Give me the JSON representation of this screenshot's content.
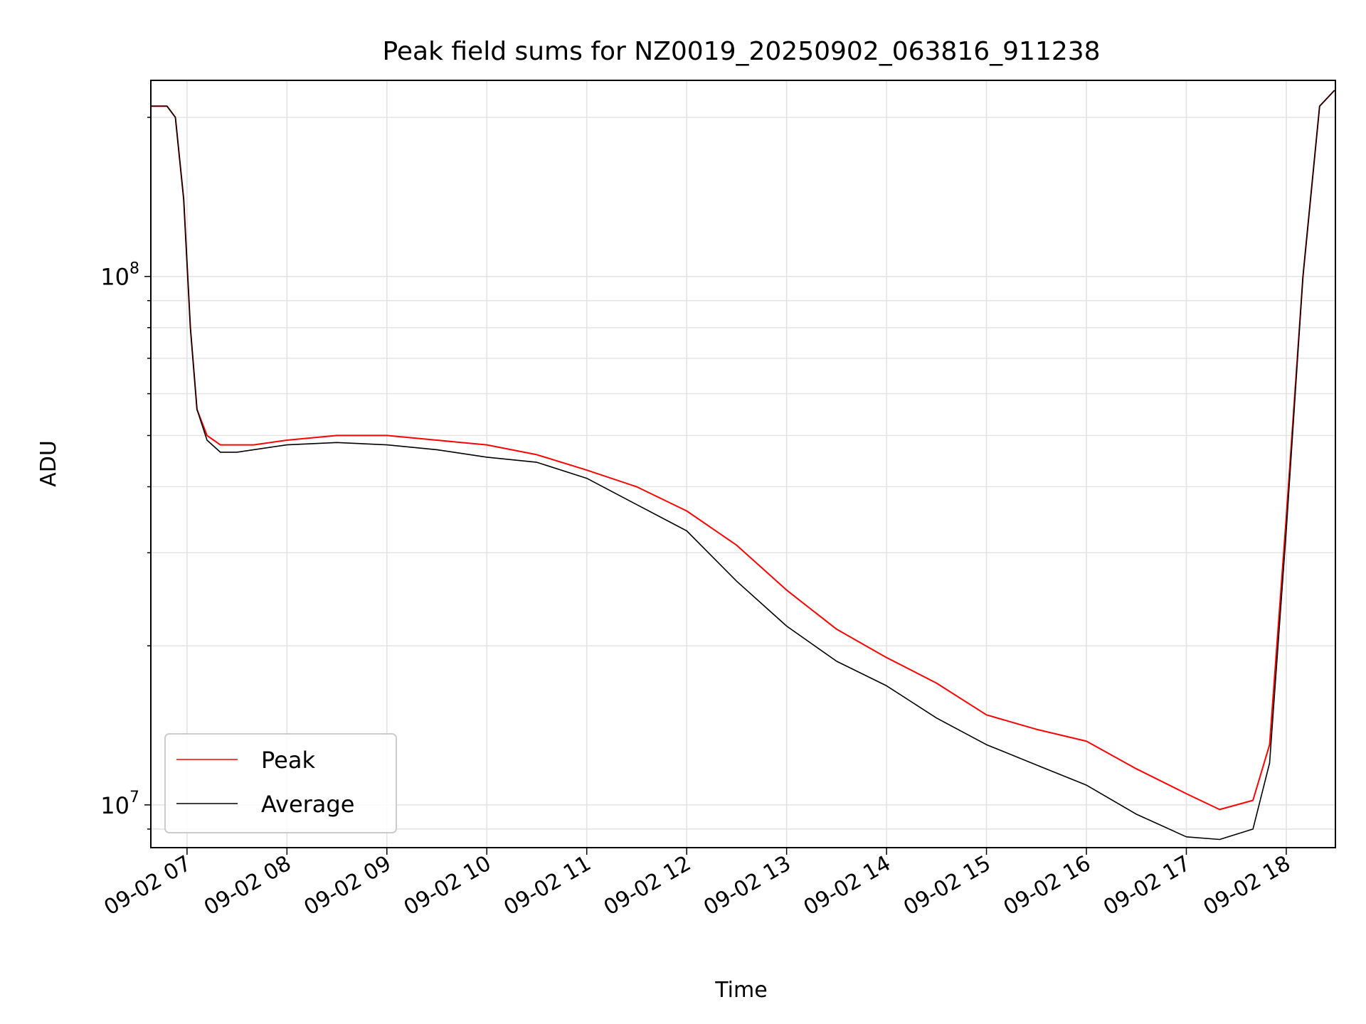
{
  "chart_data": {
    "type": "line",
    "title": "Peak field sums for NZ0019_20250902_063816_911238",
    "xlabel": "Time",
    "ylabel": "ADU",
    "yscale": "log",
    "ylim": [
      8300000,
      235000000
    ],
    "xlim": [
      "2025-09-02 06:38:16",
      "2025-09-02 18:29:30"
    ],
    "x_ticks": [
      {
        "time": "2025-09-02 07:00",
        "label": "09-02 07"
      },
      {
        "time": "2025-09-02 08:00",
        "label": "09-02 08"
      },
      {
        "time": "2025-09-02 09:00",
        "label": "09-02 09"
      },
      {
        "time": "2025-09-02 10:00",
        "label": "09-02 10"
      },
      {
        "time": "2025-09-02 11:00",
        "label": "09-02 11"
      },
      {
        "time": "2025-09-02 12:00",
        "label": "09-02 12"
      },
      {
        "time": "2025-09-02 13:00",
        "label": "09-02 13"
      },
      {
        "time": "2025-09-02 14:00",
        "label": "09-02 14"
      },
      {
        "time": "2025-09-02 15:00",
        "label": "09-02 15"
      },
      {
        "time": "2025-09-02 16:00",
        "label": "09-02 16"
      },
      {
        "time": "2025-09-02 17:00",
        "label": "09-02 17"
      },
      {
        "time": "2025-09-02 18:00",
        "label": "09-02 18"
      }
    ],
    "y_ticks": [
      {
        "value": 10000000,
        "base": "10",
        "exp": "7"
      },
      {
        "value": 100000000,
        "base": "10",
        "exp": "8"
      }
    ],
    "grid": true,
    "legend_position": "lower-left",
    "series": [
      {
        "name": "Peak",
        "color": "#ff0000",
        "x": [
          "2025-09-02 06:38",
          "2025-09-02 06:48",
          "2025-09-02 06:53",
          "2025-09-02 06:58",
          "2025-09-02 07:02",
          "2025-09-02 07:06",
          "2025-09-02 07:12",
          "2025-09-02 07:20",
          "2025-09-02 07:30",
          "2025-09-02 07:40",
          "2025-09-02 08:00",
          "2025-09-02 08:30",
          "2025-09-02 09:00",
          "2025-09-02 09:30",
          "2025-09-02 10:00",
          "2025-09-02 10:30",
          "2025-09-02 11:00",
          "2025-09-02 11:30",
          "2025-09-02 12:00",
          "2025-09-02 12:30",
          "2025-09-02 13:00",
          "2025-09-02 13:30",
          "2025-09-02 14:00",
          "2025-09-02 14:30",
          "2025-09-02 15:00",
          "2025-09-02 15:30",
          "2025-09-02 16:00",
          "2025-09-02 16:30",
          "2025-09-02 17:00",
          "2025-09-02 17:20",
          "2025-09-02 17:40",
          "2025-09-02 17:50",
          "2025-09-02 18:00",
          "2025-09-02 18:10",
          "2025-09-02 18:20",
          "2025-09-02 18:29"
        ],
        "values": [
          210000000,
          210000000,
          200000000,
          140000000,
          80000000,
          56000000,
          50000000,
          48000000,
          48000000,
          48000000,
          49000000,
          50000000,
          50000000,
          49000000,
          48000000,
          46000000,
          43000000,
          40000000,
          36000000,
          31000000,
          25500000,
          21500000,
          19000000,
          17000000,
          14800000,
          13900000,
          13200000,
          11700000,
          10500000,
          9800000,
          10200000,
          13000000,
          35000000,
          100000000,
          210000000,
          225000000
        ]
      },
      {
        "name": "Average",
        "color": "#000000",
        "x": [
          "2025-09-02 06:38",
          "2025-09-02 06:48",
          "2025-09-02 06:53",
          "2025-09-02 06:58",
          "2025-09-02 07:02",
          "2025-09-02 07:06",
          "2025-09-02 07:12",
          "2025-09-02 07:20",
          "2025-09-02 07:30",
          "2025-09-02 07:40",
          "2025-09-02 08:00",
          "2025-09-02 08:30",
          "2025-09-02 09:00",
          "2025-09-02 09:30",
          "2025-09-02 10:00",
          "2025-09-02 10:30",
          "2025-09-02 11:00",
          "2025-09-02 11:30",
          "2025-09-02 12:00",
          "2025-09-02 12:30",
          "2025-09-02 13:00",
          "2025-09-02 13:30",
          "2025-09-02 14:00",
          "2025-09-02 14:30",
          "2025-09-02 15:00",
          "2025-09-02 15:30",
          "2025-09-02 16:00",
          "2025-09-02 16:30",
          "2025-09-02 17:00",
          "2025-09-02 17:20",
          "2025-09-02 17:40",
          "2025-09-02 17:50",
          "2025-09-02 18:00",
          "2025-09-02 18:10",
          "2025-09-02 18:20",
          "2025-09-02 18:29"
        ],
        "values": [
          210000000,
          210000000,
          200000000,
          140000000,
          80000000,
          56000000,
          49000000,
          46500000,
          46500000,
          47000000,
          48000000,
          48500000,
          48000000,
          47000000,
          45500000,
          44500000,
          41500000,
          37000000,
          33000000,
          26500000,
          21800000,
          18700000,
          16800000,
          14600000,
          13000000,
          11900000,
          10900000,
          9600000,
          8700000,
          8600000,
          9000000,
          12000000,
          33000000,
          100000000,
          210000000,
          225000000
        ]
      }
    ]
  }
}
